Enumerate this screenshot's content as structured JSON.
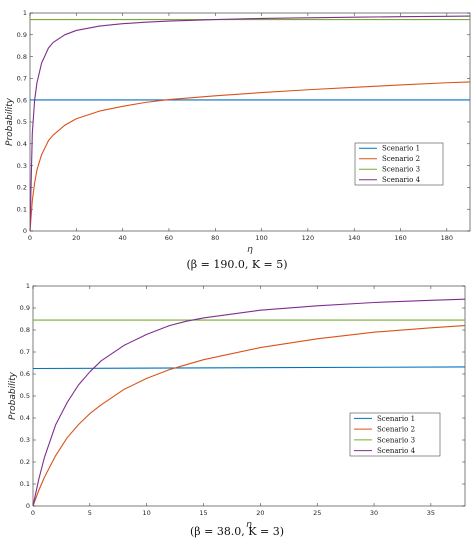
{
  "colors": {
    "scenario1": "#0072BD",
    "scenario2": "#D95319",
    "scenario3": "#77AC30",
    "scenario4": "#7E2F8E",
    "axis": "#262626"
  },
  "chart_data": [
    {
      "type": "line",
      "caption": "(β = 190.0, K = 5)",
      "xlabel": "η",
      "ylabel": "Probability",
      "xlim": [
        0,
        190
      ],
      "ylim": [
        0,
        1
      ],
      "xticks": [
        "0",
        "20",
        "40",
        "60",
        "80",
        "100",
        "120",
        "140",
        "160",
        "180"
      ],
      "yticks": [
        "0",
        "0.1",
        "0.2",
        "0.3",
        "0.4",
        "0.5",
        "0.6",
        "0.7",
        "0.8",
        "0.9",
        "1"
      ],
      "legend_position": "lower-right",
      "grid": false,
      "series": [
        {
          "name": "Scenario 1",
          "x": [
            0,
            190
          ],
          "values": [
            0.601,
            0.601
          ]
        },
        {
          "name": "Scenario 2",
          "x": [
            0,
            1,
            2,
            3,
            5,
            8,
            10,
            15,
            20,
            30,
            40,
            50,
            60,
            80,
            100,
            120,
            140,
            160,
            180,
            190
          ],
          "values": [
            0.0,
            0.14,
            0.22,
            0.28,
            0.35,
            0.415,
            0.44,
            0.485,
            0.515,
            0.55,
            0.572,
            0.59,
            0.603,
            0.62,
            0.635,
            0.648,
            0.659,
            0.67,
            0.68,
            0.684
          ]
        },
        {
          "name": "Scenario 3",
          "x": [
            0,
            190
          ],
          "values": [
            0.97,
            0.97
          ]
        },
        {
          "name": "Scenario 4",
          "x": [
            0,
            1,
            2,
            3,
            5,
            8,
            10,
            15,
            20,
            30,
            40,
            50,
            60,
            80,
            100,
            120,
            140,
            160,
            180,
            190
          ],
          "values": [
            0.0,
            0.45,
            0.6,
            0.68,
            0.77,
            0.84,
            0.865,
            0.9,
            0.92,
            0.94,
            0.951,
            0.958,
            0.963,
            0.97,
            0.975,
            0.978,
            0.981,
            0.983,
            0.985,
            0.986
          ]
        }
      ]
    },
    {
      "type": "line",
      "caption": "(β = 38.0, K = 3)",
      "xlabel": "η",
      "ylabel": "Probability",
      "xlim": [
        0,
        38
      ],
      "ylim": [
        0,
        1
      ],
      "xticks": [
        "0",
        "5",
        "10",
        "15",
        "20",
        "25",
        "30",
        "35"
      ],
      "yticks": [
        "0",
        "0.1",
        "0.2",
        "0.3",
        "0.4",
        "0.5",
        "0.6",
        "0.7",
        "0.8",
        "0.9",
        "1"
      ],
      "legend_position": "lower-right",
      "grid": false,
      "series": [
        {
          "name": "Scenario 1",
          "x": [
            0,
            38
          ],
          "values": [
            0.625,
            0.632
          ]
        },
        {
          "name": "Scenario 2",
          "x": [
            0,
            0.5,
            1,
            2,
            3,
            4,
            5,
            6,
            8,
            10,
            12,
            13,
            15,
            20,
            25,
            30,
            35,
            38
          ],
          "values": [
            0.0,
            0.07,
            0.13,
            0.23,
            0.31,
            0.37,
            0.42,
            0.46,
            0.53,
            0.58,
            0.62,
            0.635,
            0.665,
            0.72,
            0.76,
            0.79,
            0.81,
            0.82
          ]
        },
        {
          "name": "Scenario 3",
          "x": [
            0,
            38
          ],
          "values": [
            0.845,
            0.845
          ]
        },
        {
          "name": "Scenario 4",
          "x": [
            0,
            0.5,
            1,
            2,
            3,
            4,
            5,
            6,
            8,
            10,
            12,
            13.5,
            15,
            20,
            25,
            30,
            35,
            38
          ],
          "values": [
            0.0,
            0.12,
            0.22,
            0.37,
            0.47,
            0.55,
            0.61,
            0.66,
            0.73,
            0.78,
            0.82,
            0.84,
            0.855,
            0.89,
            0.91,
            0.925,
            0.935,
            0.94
          ]
        }
      ]
    }
  ]
}
